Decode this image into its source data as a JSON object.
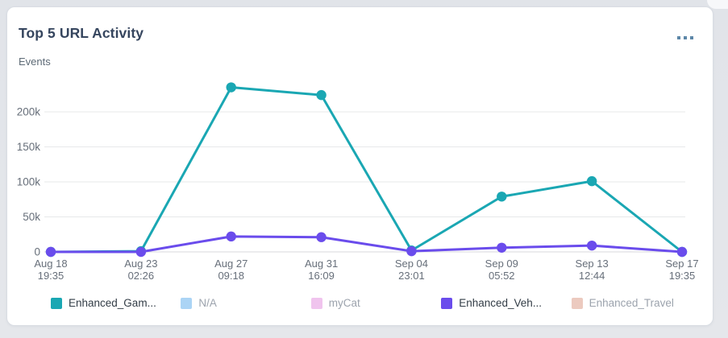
{
  "card": {
    "title": "Top 5 URL Activity",
    "axis_title": "Events",
    "menu_icon": "ellipsis-menu"
  },
  "colors": {
    "card_background": "#ffffff",
    "page_background": "#e3e6ea",
    "title_text": "#35455e",
    "tick_text": "#676f7a",
    "gridline": "#e7e8ea",
    "baseline": "#d8dade",
    "menu_icon": "#5d87a8"
  },
  "chart_data": {
    "type": "line",
    "title": "Top 5 URL Activity",
    "xlabel": "",
    "ylabel": "Events",
    "grid": true,
    "legend_position": "bottom",
    "ylim": [
      0,
      240000
    ],
    "y_ticks": [
      0,
      50000,
      100000,
      150000,
      200000
    ],
    "y_tick_labels": [
      "0",
      "50k",
      "100k",
      "150k",
      "200k"
    ],
    "x_tick_labels": [
      [
        "Aug 18",
        "19:35"
      ],
      [
        "Aug 23",
        "02:26"
      ],
      [
        "Aug 27",
        "09:18"
      ],
      [
        "Aug 31",
        "16:09"
      ],
      [
        "Sep 04",
        "23:01"
      ],
      [
        "Sep 09",
        "05:52"
      ],
      [
        "Sep 13",
        "12:44"
      ],
      [
        "Sep 17",
        "19:35"
      ]
    ],
    "series": [
      {
        "name": "Enhanced_Gam...",
        "color": "#1aa7b3",
        "active": true,
        "values": [
          0,
          1000,
          235000,
          224000,
          2000,
          79000,
          101000,
          0
        ]
      },
      {
        "name": "N/A",
        "color": "#abd4f5",
        "active": false,
        "values": []
      },
      {
        "name": "myCat",
        "color": "#f0c4ee",
        "active": false,
        "values": []
      },
      {
        "name": "Enhanced_Veh...",
        "color": "#6a4cec",
        "active": true,
        "values": [
          0,
          0,
          22000,
          21000,
          1000,
          6000,
          9000,
          0
        ]
      },
      {
        "name": "Enhanced_Travel",
        "color": "#eccabf",
        "active": false,
        "values": []
      }
    ]
  }
}
